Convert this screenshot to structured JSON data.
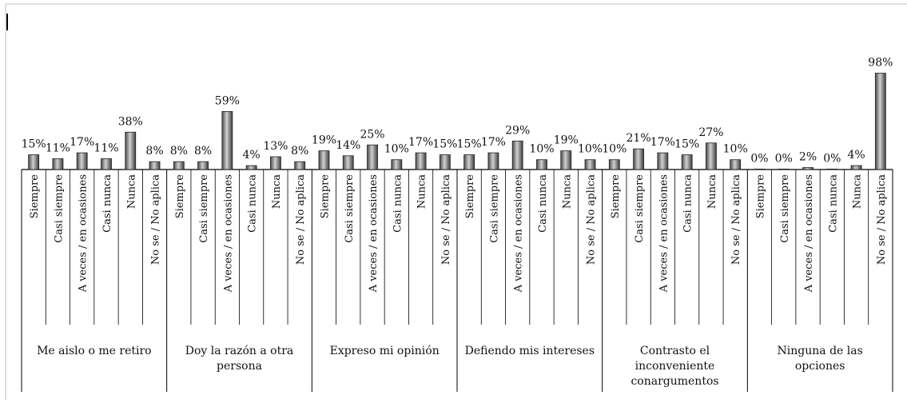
{
  "chart_data": {
    "type": "bar",
    "title": "",
    "xlabel": "",
    "ylabel": "",
    "ylim": [
      0,
      100
    ],
    "grid": false,
    "legend": "none",
    "bar_color": "#6e6e6e",
    "bar_highlight": "#cfcfcf",
    "response_labels": [
      "Siempre",
      "Casi siempre",
      "A veces / en ocasiones",
      "Casi nunca",
      "Nunca",
      "No se / No aplica"
    ],
    "groups": [
      {
        "name": "Me aislo o me retiro",
        "values": [
          15,
          11,
          17,
          11,
          38,
          8
        ]
      },
      {
        "name": "Doy la razón a otra persona",
        "values": [
          8,
          8,
          59,
          4,
          13,
          8
        ]
      },
      {
        "name": "Expreso mi opinión",
        "values": [
          19,
          14,
          25,
          10,
          17,
          15
        ]
      },
      {
        "name": "Defiendo mis intereses",
        "values": [
          15,
          17,
          29,
          10,
          19,
          10
        ]
      },
      {
        "name": "Contrasto el inconveniente conargumentos",
        "values": [
          10,
          21,
          17,
          15,
          27,
          10
        ]
      },
      {
        "name": "Ninguna de las opciones",
        "values": [
          0,
          0,
          2,
          0,
          4,
          98
        ]
      }
    ]
  }
}
